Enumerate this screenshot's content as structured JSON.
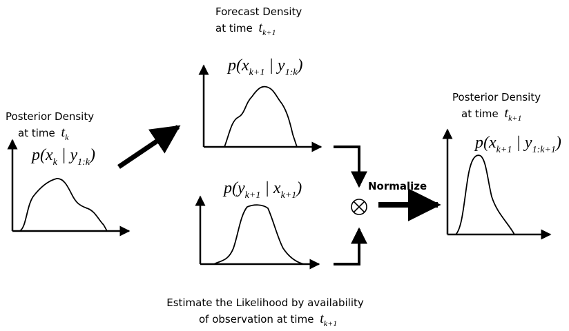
{
  "left_panel": {
    "title": "Posterior Density",
    "time_label": "at time",
    "time_var": "t",
    "time_sub": "k",
    "formula": [
      {
        "text": "p(x",
        "sub": "k"
      },
      {
        "text": " | y",
        "sub": "1:k"
      },
      {
        "text": ")"
      }
    ]
  },
  "forecast_panel": {
    "title": "Forecast Density",
    "time_label": "at time",
    "time_var": "t",
    "time_sub": "k+1",
    "formula": [
      {
        "text": "p(x",
        "sub": "k+1"
      },
      {
        "text": " | y",
        "sub": "1:k"
      },
      {
        "text": ")"
      }
    ]
  },
  "likelihood_panel": {
    "formula": [
      {
        "text": "p(y",
        "sub": "k+1"
      },
      {
        "text": " | x",
        "sub": "k+1"
      },
      {
        "text": ")"
      }
    ]
  },
  "right_panel": {
    "title": "Posterior Density",
    "time_label": "at time",
    "time_var": "t",
    "time_sub": "k+1",
    "formula": [
      {
        "text": "p(x",
        "sub": "k+1"
      },
      {
        "text": " | y",
        "sub": "1:k+1"
      },
      {
        "text": ")"
      }
    ]
  },
  "normalize": "Normalize",
  "footer": {
    "line1": "Estimate the Likelihood by availability",
    "line2": "of observation at time",
    "time_var": "t",
    "time_sub": "k+1"
  }
}
